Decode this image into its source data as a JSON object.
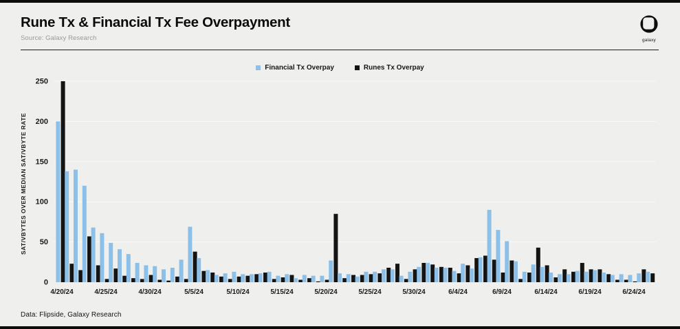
{
  "header": {
    "title": "Rune Tx & Financial Tx Fee Overpayment",
    "source": "Source: Galaxy Research"
  },
  "brand": {
    "label": "galaxy",
    "logo_icon": "galaxy-squircle-logo",
    "logo_color": "#0d0d0d"
  },
  "footer": {
    "text": "Data: Flipside, Galaxy Research"
  },
  "colors": {
    "background": "#efefee",
    "financial_blue": "#8cc0e8",
    "runes_black": "#141414",
    "gridline": "#fafafa"
  },
  "chart_data": {
    "type": "bar",
    "title": "Rune Tx & Financial Tx Fee Overpayment",
    "ylabel": "SAT/VBYTES OVER MEDIAN SAT/VBYTE RATE",
    "xlabel": "",
    "ylim": [
      0,
      250
    ],
    "yticks": [
      0,
      50,
      100,
      150,
      200,
      250
    ],
    "grid": "horizontal",
    "legend_position": "top-center",
    "xtick_every": 5,
    "categories": [
      "4/20/24",
      "4/21/24",
      "4/22/24",
      "4/23/24",
      "4/24/24",
      "4/25/24",
      "4/26/24",
      "4/27/24",
      "4/28/24",
      "4/29/24",
      "4/30/24",
      "5/1/24",
      "5/2/24",
      "5/3/24",
      "5/4/24",
      "5/5/24",
      "5/6/24",
      "5/7/24",
      "5/8/24",
      "5/9/24",
      "5/10/24",
      "5/11/24",
      "5/12/24",
      "5/13/24",
      "5/14/24",
      "5/15/24",
      "5/16/24",
      "5/17/24",
      "5/18/24",
      "5/19/24",
      "5/20/24",
      "5/21/24",
      "5/22/24",
      "5/23/24",
      "5/24/24",
      "5/25/24",
      "5/26/24",
      "5/27/24",
      "5/28/24",
      "5/29/24",
      "5/30/24",
      "5/31/24",
      "6/1/24",
      "6/2/24",
      "6/3/24",
      "6/4/24",
      "6/5/24",
      "6/6/24",
      "6/7/24",
      "6/8/24",
      "6/9/24",
      "6/10/24",
      "6/11/24",
      "6/12/24",
      "6/13/24",
      "6/14/24",
      "6/15/24",
      "6/16/24",
      "6/17/24",
      "6/18/24",
      "6/19/24",
      "6/20/24",
      "6/21/24",
      "6/22/24",
      "6/23/24",
      "6/24/24",
      "6/25/24",
      "6/26/24"
    ],
    "series": [
      {
        "name": "Financial Tx Overpay",
        "color": "#8cc0e8",
        "values": [
          200,
          138,
          140,
          120,
          68,
          61,
          49,
          41,
          35,
          24,
          21,
          20,
          16,
          18,
          28,
          69,
          30,
          15,
          9,
          11,
          13,
          10,
          10,
          11,
          13,
          8,
          10,
          5,
          9,
          8,
          8,
          27,
          11,
          10,
          7,
          13,
          13,
          16,
          16,
          8,
          13,
          19,
          24,
          18,
          18,
          14,
          23,
          17,
          31,
          90,
          65,
          51,
          26,
          13,
          22,
          19,
          12,
          10,
          10,
          14,
          13,
          15,
          12,
          9,
          10,
          9,
          11,
          13
        ]
      },
      {
        "name": "Runes Tx Overpay",
        "color": "#141414",
        "values": [
          250,
          23,
          15,
          57,
          21,
          4,
          17,
          8,
          5,
          4,
          9,
          3,
          2,
          7,
          4,
          38,
          14,
          12,
          7,
          4,
          7,
          8,
          10,
          12,
          4,
          6,
          9,
          3,
          5,
          1,
          3,
          85,
          5,
          9,
          9,
          10,
          11,
          18,
          23,
          4,
          16,
          24,
          22,
          19,
          18,
          11,
          21,
          30,
          33,
          28,
          12,
          27,
          4,
          12,
          43,
          21,
          6,
          16,
          13,
          24,
          16,
          16,
          10,
          3,
          3,
          1,
          16,
          11
        ]
      }
    ]
  }
}
